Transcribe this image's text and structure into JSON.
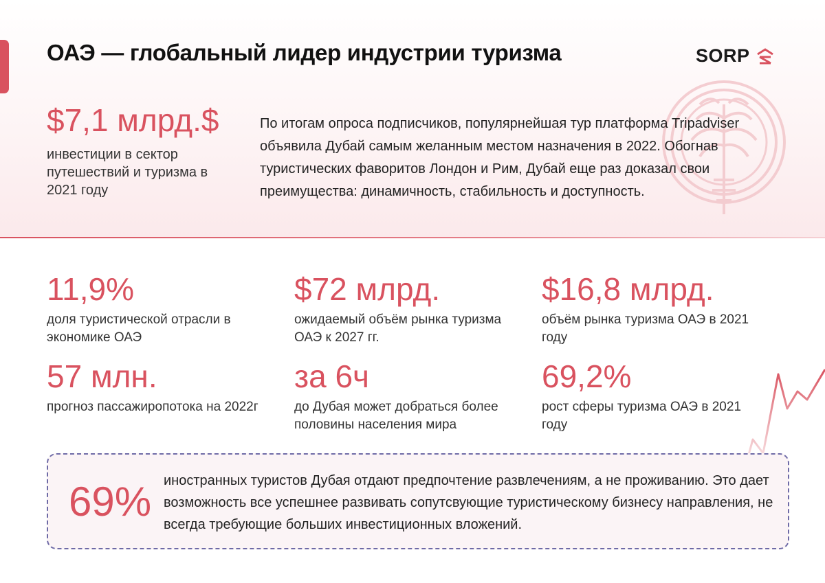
{
  "title": "ОАЭ — глобальный лидер индустрии туризма",
  "logo": {
    "text": "SORP"
  },
  "colors": {
    "accent": "#d9525f",
    "callout_border": "#6e6aa6"
  },
  "headline_stat": {
    "value": "$7,1 млрд.$",
    "description": "инвестиции в сектор путешествий и туризма в 2021 году"
  },
  "intro_text": "По итогам опроса подписчиков, популярнейшая тур платформа Tripadviser объявила Дубай самым желанным местом назначения в 2022. Обогнав туристических фаворитов Лондон и Рим, Дубай еще раз доказал свои преимущества: динамичность, стабильность и доступность.",
  "stats": [
    {
      "value": "11,9%",
      "description": "доля туристической отрасли в экономике ОАЭ"
    },
    {
      "value": "$72 млрд.",
      "description": "ожидаемый объём рынка туризма ОАЭ к 2027 гг."
    },
    {
      "value": "$16,8 млрд.",
      "description": "объём рынка туризма ОАЭ в 2021 году"
    },
    {
      "value": "57 млн.",
      "description": "прогноз пассажиропотока на 2022г"
    },
    {
      "value": "за 6ч",
      "description": "до Дубая может добраться более половины населения мира"
    },
    {
      "value": "69,2%",
      "description": "рост сферы туризма ОАЭ в 2021 году"
    }
  ],
  "callout": {
    "value": "69%",
    "text": "иностранных туристов Дубая отдают предпочтение развлечениям, а не проживанию. Это дает возможность все успешнее развивать сопутсвующие туристическому бизнесу направления, не всегда требующие больших инвестиционных вложений."
  }
}
